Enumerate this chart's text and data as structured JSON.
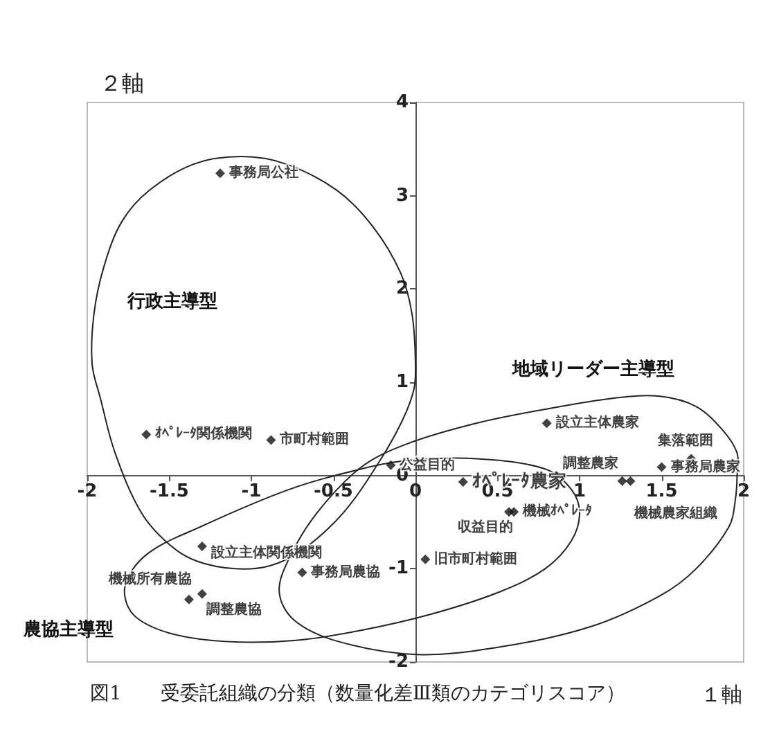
{
  "chart_data": {
    "type": "scatter",
    "title": "図1　　受委託組織の分類（数量化差Ⅲ類のカテゴリスコア）",
    "xlabel": "１軸",
    "ylabel": "２軸",
    "xlim": [
      -2,
      2
    ],
    "xticks": [
      -2,
      -1.5,
      -1,
      -0.5,
      0,
      0.5,
      1,
      1.5,
      2
    ],
    "ylim": [
      -2,
      4
    ],
    "yticks": [
      -2,
      -1,
      0,
      1,
      2,
      3,
      4
    ],
    "marker": "diamond",
    "legend": false,
    "series": [
      {
        "name": "事務局公社",
        "color": "#111111",
        "x": [
          -1.19
        ],
        "values": [
          3.24
        ]
      },
      {
        "name": "ｵﾍﾟﾚｰﾀ関係機関",
        "color": "#111111",
        "x": [
          -1.64
        ],
        "values": [
          0.44
        ]
      },
      {
        "name": "市町村範囲",
        "color": "#111111",
        "x": [
          -0.88
        ],
        "values": [
          0.38
        ]
      },
      {
        "name": "公益目的",
        "color": "#111111",
        "x": [
          -0.15
        ],
        "values": [
          0.11
        ]
      },
      {
        "name": "ｵﾍﾟﾚｰﾀ農家",
        "color": "#111111",
        "x": [
          0.29
        ],
        "values": [
          -0.07
        ]
      },
      {
        "name": "収益目的",
        "color": "#111111",
        "x": [
          0.57
        ],
        "values": [
          -0.39
        ]
      },
      {
        "name": "機械ｵﾍﾟﾚｰﾀ",
        "color": "#111111",
        "x": [
          0.6
        ],
        "values": [
          -0.39
        ]
      },
      {
        "name": "旧市町村範囲",
        "color": "#111111",
        "x": [
          0.06
        ],
        "values": [
          -0.9
        ]
      },
      {
        "name": "設立主体農家",
        "color": "#111111",
        "x": [
          0.8
        ],
        "values": [
          0.56
        ]
      },
      {
        "name": "調整農家",
        "color": "#111111",
        "x": [
          1.26
        ],
        "values": [
          -0.06
        ]
      },
      {
        "name": "機械農家組織",
        "color": "#111111",
        "x": [
          1.31
        ],
        "values": [
          -0.06
        ]
      },
      {
        "name": "事務局農家",
        "color": "#111111",
        "x": [
          1.5
        ],
        "values": [
          0.09
        ]
      },
      {
        "name": "集落範囲",
        "color": "#111111",
        "x": [
          1.68
        ],
        "values": [
          0.18
        ]
      },
      {
        "name": "設立主体関係機関",
        "color": "#111111",
        "x": [
          -1.3
        ],
        "values": [
          -0.76
        ]
      },
      {
        "name": "事務局農協",
        "color": "#111111",
        "x": [
          -0.69
        ],
        "values": [
          -1.04
        ]
      },
      {
        "name": "機械所有農協",
        "color": "#111111",
        "x": [
          -1.38
        ],
        "values": [
          -1.33
        ]
      },
      {
        "name": "調整農協",
        "color": "#111111",
        "x": [
          -1.3
        ],
        "values": [
          -1.27
        ]
      }
    ],
    "annotations": [
      "行政主導型",
      "地域リーダー主導型",
      "農協主導型"
    ]
  }
}
